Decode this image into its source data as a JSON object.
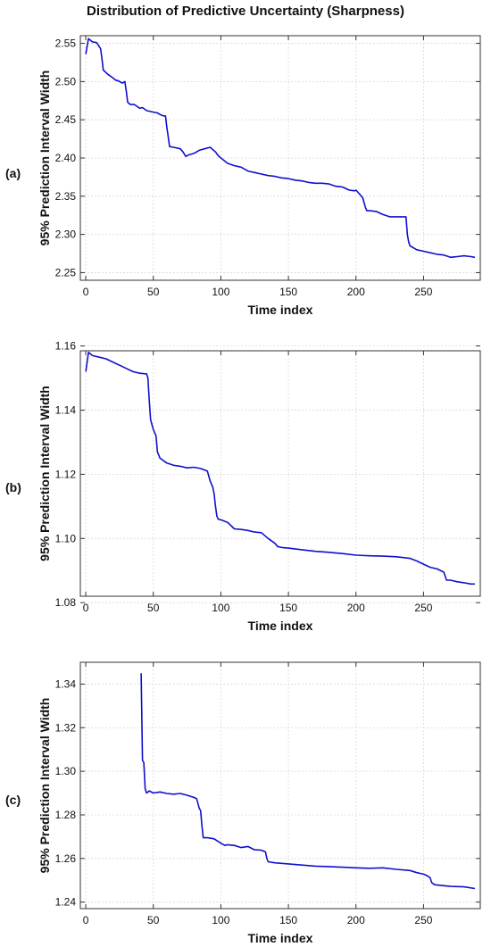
{
  "figure": {
    "title": "Distribution of Predictive Uncertainty (Sharpness)"
  },
  "chart_data": [
    {
      "type": "line",
      "panel_label": "(a)",
      "xlabel": "Time index",
      "ylabel": "95% Prediction Interval Width",
      "xlim": [
        -4,
        292
      ],
      "ylim": [
        2.24,
        2.56
      ],
      "xticks": [
        0,
        50,
        100,
        150,
        200,
        250
      ],
      "yticks": [
        2.25,
        2.3,
        2.35,
        2.4,
        2.45,
        2.5,
        2.55
      ],
      "ytick_labels": [
        "2.25",
        "2.30",
        "2.35",
        "2.40",
        "2.45",
        "2.50",
        "2.55"
      ],
      "grid": true,
      "color": "#1010cc",
      "series": [
        {
          "x": [
            0,
            2,
            5,
            8,
            11,
            12,
            13,
            16,
            20,
            22,
            24,
            27,
            29,
            30,
            31,
            33,
            36,
            40,
            42,
            45,
            50,
            53,
            56,
            58,
            59,
            60,
            61,
            62,
            65,
            70,
            72,
            74,
            76,
            80,
            84,
            88,
            92,
            96,
            98,
            100,
            105,
            110,
            115,
            120,
            125,
            130,
            135,
            140,
            145,
            150,
            155,
            160,
            165,
            170,
            175,
            180,
            185,
            190,
            195,
            199,
            200,
            205,
            207,
            208,
            210,
            215,
            220,
            225,
            230,
            235,
            237,
            238,
            239,
            240,
            245,
            250,
            255,
            260,
            265,
            270,
            275,
            280,
            285,
            288
          ],
          "y": [
            2.536,
            2.556,
            2.552,
            2.551,
            2.543,
            2.53,
            2.515,
            2.51,
            2.505,
            2.502,
            2.501,
            2.498,
            2.5,
            2.487,
            2.473,
            2.47,
            2.47,
            2.465,
            2.466,
            2.462,
            2.46,
            2.459,
            2.456,
            2.455,
            2.455,
            2.44,
            2.428,
            2.415,
            2.414,
            2.412,
            2.408,
            2.402,
            2.404,
            2.406,
            2.41,
            2.412,
            2.414,
            2.408,
            2.403,
            2.4,
            2.393,
            2.39,
            2.388,
            2.383,
            2.381,
            2.379,
            2.377,
            2.376,
            2.374,
            2.373,
            2.371,
            2.37,
            2.368,
            2.367,
            2.367,
            2.366,
            2.363,
            2.362,
            2.358,
            2.357,
            2.358,
            2.348,
            2.335,
            2.331,
            2.331,
            2.33,
            2.326,
            2.323,
            2.323,
            2.323,
            2.323,
            2.3,
            2.29,
            2.285,
            2.28,
            2.278,
            2.276,
            2.274,
            2.273,
            2.27,
            2.271,
            2.272,
            2.271,
            2.27
          ]
        }
      ]
    },
    {
      "type": "line",
      "panel_label": "(b)",
      "xlabel": "Time index",
      "ylabel": "95% Prediction Interval Width",
      "xlim": [
        -4,
        292
      ],
      "ylim": [
        1.082,
        1.1585
      ],
      "xticks": [
        0,
        50,
        100,
        150,
        200,
        250
      ],
      "yticks": [
        1.08,
        1.1,
        1.12,
        1.14,
        1.16
      ],
      "ytick_labels": [
        "1.08",
        "1.10",
        "1.12",
        "1.14",
        "1.16"
      ],
      "grid": true,
      "color": "#1010cc",
      "series": [
        {
          "x": [
            0,
            2,
            5,
            10,
            15,
            20,
            25,
            30,
            35,
            40,
            45,
            46,
            47,
            48,
            50,
            52,
            53,
            55,
            60,
            65,
            70,
            75,
            80,
            85,
            90,
            92,
            94,
            95,
            96,
            97,
            98,
            100,
            105,
            110,
            115,
            120,
            125,
            130,
            135,
            140,
            142,
            145,
            150,
            160,
            170,
            180,
            190,
            200,
            210,
            220,
            230,
            240,
            245,
            250,
            255,
            260,
            265,
            267,
            270,
            275,
            280,
            285,
            288
          ],
          "y": [
            1.152,
            1.158,
            1.157,
            1.1565,
            1.156,
            1.155,
            1.154,
            1.153,
            1.152,
            1.1515,
            1.1513,
            1.15,
            1.143,
            1.137,
            1.134,
            1.132,
            1.127,
            1.125,
            1.1235,
            1.1228,
            1.1225,
            1.122,
            1.1222,
            1.1218,
            1.121,
            1.118,
            1.116,
            1.114,
            1.11,
            1.107,
            1.106,
            1.1058,
            1.105,
            1.103,
            1.1028,
            1.1025,
            1.102,
            1.1018,
            1.1,
            1.0985,
            1.0975,
            1.0972,
            1.097,
            1.0965,
            1.096,
            1.0957,
            1.0953,
            1.0948,
            1.0946,
            1.0945,
            1.0943,
            1.0938,
            1.093,
            1.092,
            1.091,
            1.0905,
            1.0895,
            1.087,
            1.087,
            1.0865,
            1.0862,
            1.0858,
            1.0858
          ]
        }
      ]
    },
    {
      "type": "line",
      "panel_label": "(c)",
      "xlabel": "Time index",
      "ylabel": "95% Prediction Interval Width",
      "xlim": [
        -4,
        292
      ],
      "ylim": [
        1.237,
        1.35
      ],
      "xticks": [
        0,
        50,
        100,
        150,
        200,
        250
      ],
      "yticks": [
        1.24,
        1.26,
        1.28,
        1.3,
        1.32,
        1.34
      ],
      "ytick_labels": [
        "1.24",
        "1.26",
        "1.28",
        "1.30",
        "1.32",
        "1.34"
      ],
      "grid": true,
      "color": "#1010cc",
      "series": [
        {
          "x": [
            41,
            42,
            43,
            44,
            45,
            47,
            50,
            55,
            60,
            65,
            70,
            75,
            80,
            82,
            84,
            85,
            86,
            87,
            90,
            95,
            100,
            103,
            105,
            110,
            115,
            120,
            125,
            130,
            133,
            134,
            135,
            140,
            150,
            160,
            170,
            180,
            190,
            200,
            210,
            220,
            230,
            240,
            245,
            250,
            253,
            255,
            256,
            258,
            260,
            270,
            280,
            288
          ],
          "y": [
            1.345,
            1.305,
            1.304,
            1.292,
            1.29,
            1.291,
            1.29,
            1.2905,
            1.2898,
            1.2895,
            1.2898,
            1.289,
            1.288,
            1.2875,
            1.283,
            1.282,
            1.275,
            1.2695,
            1.2695,
            1.269,
            1.267,
            1.266,
            1.2663,
            1.266,
            1.265,
            1.2655,
            1.264,
            1.2638,
            1.263,
            1.26,
            1.2585,
            1.258,
            1.2575,
            1.257,
            1.2565,
            1.2563,
            1.256,
            1.2557,
            1.2555,
            1.2557,
            1.255,
            1.2545,
            1.2535,
            1.2528,
            1.252,
            1.251,
            1.249,
            1.248,
            1.2478,
            1.2472,
            1.247,
            1.2462
          ]
        }
      ]
    }
  ]
}
